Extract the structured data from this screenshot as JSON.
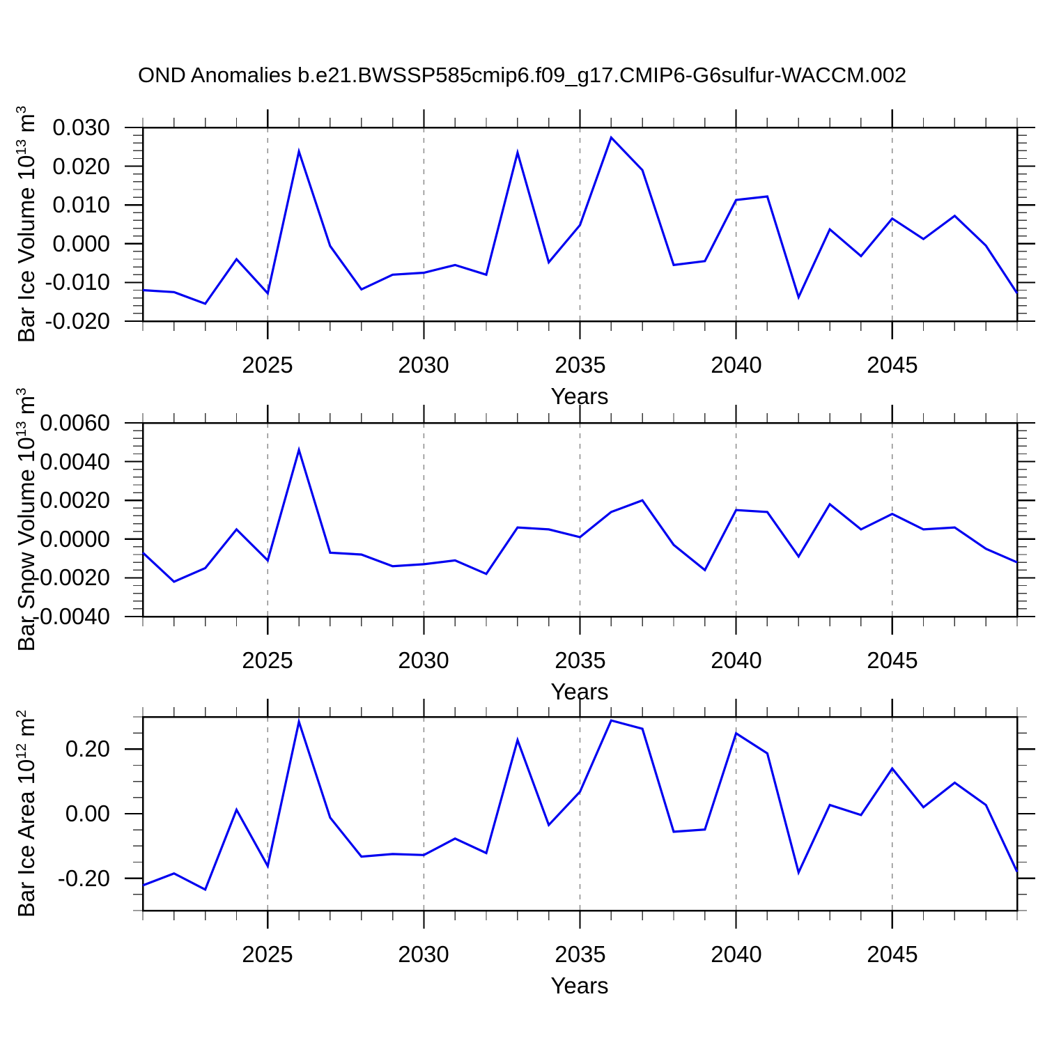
{
  "title": "OND Anomalies b.e21.BWSSP585cmip6.f09_g17.CMIP6-G6sulfur-WACCM.002",
  "style": {
    "line_color": "#0000f0",
    "axis_color": "#000000",
    "minor_tick_color": "#3a3a3a",
    "grid_color": "#8c8c8c",
    "background": "#ffffff"
  },
  "chart_data": [
    {
      "type": "line",
      "name": "ice-volume",
      "ylabel_main": "Bar Ice Volume 10",
      "ylabel_sup1": "13",
      "ylabel_mid": " m",
      "ylabel_sup2": "3",
      "xlabel": "Years",
      "xlim": [
        2021,
        2049
      ],
      "ylim": [
        -0.02,
        0.03
      ],
      "y_minor_step": 0.002,
      "y_tick_values": [
        0.03,
        0.02,
        0.01,
        0.0,
        -0.01,
        -0.02
      ],
      "y_tick_labels": [
        "0.030",
        "0.020",
        "0.010",
        "0.000",
        "-0.010",
        "-0.020"
      ],
      "x_tick_values": [
        2025,
        2030,
        2035,
        2040,
        2045
      ],
      "x_tick_labels": [
        "2025",
        "2030",
        "2035",
        "2040",
        "2045"
      ],
      "grid": "vertical-dashed-at-major",
      "years": [
        2021,
        2022,
        2023,
        2024,
        2025,
        2026,
        2027,
        2028,
        2029,
        2030,
        2031,
        2032,
        2033,
        2034,
        2035,
        2036,
        2037,
        2038,
        2039,
        2040,
        2041,
        2042,
        2043,
        2044,
        2045,
        2046,
        2047,
        2048,
        2049
      ],
      "values": [
        -0.012,
        -0.0125,
        -0.0155,
        -0.004,
        -0.0128,
        0.0238,
        -0.0006,
        -0.0118,
        -0.008,
        -0.0075,
        -0.0055,
        -0.008,
        0.0235,
        -0.0048,
        0.0048,
        0.0274,
        0.019,
        -0.0055,
        -0.0045,
        0.0113,
        0.0122,
        -0.0138,
        0.0037,
        -0.0032,
        0.0065,
        0.0012,
        0.0072,
        -0.0005,
        -0.0128
      ]
    },
    {
      "type": "line",
      "name": "snow-volume",
      "ylabel_main": "Bar Snow Volume 10",
      "ylabel_sup1": "13",
      "ylabel_mid": " m",
      "ylabel_sup2": "3",
      "xlabel": "Years",
      "xlim": [
        2021,
        2049
      ],
      "ylim": [
        -0.004,
        0.006
      ],
      "y_minor_step": 0.0004,
      "y_tick_values": [
        0.006,
        0.004,
        0.002,
        0.0,
        -0.002,
        -0.004
      ],
      "y_tick_labels": [
        "0.0060",
        "0.0040",
        "0.0020",
        "0.0000",
        "-0.0020",
        "-0.0040"
      ],
      "x_tick_values": [
        2025,
        2030,
        2035,
        2040,
        2045
      ],
      "x_tick_labels": [
        "2025",
        "2030",
        "2035",
        "2040",
        "2045"
      ],
      "grid": "vertical-dashed-at-major",
      "years": [
        2021,
        2022,
        2023,
        2024,
        2025,
        2026,
        2027,
        2028,
        2029,
        2030,
        2031,
        2032,
        2033,
        2034,
        2035,
        2036,
        2037,
        2038,
        2039,
        2040,
        2041,
        2042,
        2043,
        2044,
        2045,
        2046,
        2047,
        2048,
        2049
      ],
      "values": [
        -0.0007,
        -0.0022,
        -0.0015,
        0.0005,
        -0.0011,
        0.0046,
        -0.0007,
        -0.0008,
        -0.0014,
        -0.0013,
        -0.0011,
        -0.0018,
        0.0006,
        0.0005,
        0.0001,
        0.0014,
        0.002,
        -0.0003,
        -0.0016,
        0.0015,
        0.0014,
        -0.0009,
        0.0018,
        0.0005,
        0.0013,
        0.0005,
        0.0006,
        -0.0005,
        -0.0012
      ]
    },
    {
      "type": "line",
      "name": "ice-area",
      "ylabel_main": "Bar Ice Area 10",
      "ylabel_sup1": "12",
      "ylabel_mid": " m",
      "ylabel_sup2": "2",
      "xlabel": "Years",
      "xlim": [
        2021,
        2049
      ],
      "ylim": [
        -0.3,
        0.3
      ],
      "y_minor_step": 0.05,
      "y_tick_values": [
        0.2,
        0.0,
        -0.2
      ],
      "y_tick_labels": [
        "0.20",
        "0.00",
        "-0.20"
      ],
      "x_tick_values": [
        2025,
        2030,
        2035,
        2040,
        2045
      ],
      "x_tick_labels": [
        "2025",
        "2030",
        "2035",
        "2040",
        "2045"
      ],
      "grid": "vertical-dashed-at-major",
      "years": [
        2021,
        2022,
        2023,
        2024,
        2025,
        2026,
        2027,
        2028,
        2029,
        2030,
        2031,
        2032,
        2033,
        2034,
        2035,
        2036,
        2037,
        2038,
        2039,
        2040,
        2041,
        2042,
        2043,
        2044,
        2045,
        2046,
        2047,
        2048,
        2049
      ],
      "values": [
        -0.222,
        -0.185,
        -0.235,
        0.012,
        -0.162,
        0.285,
        -0.012,
        -0.133,
        -0.125,
        -0.128,
        -0.077,
        -0.122,
        0.228,
        -0.035,
        0.068,
        0.289,
        0.263,
        -0.056,
        -0.049,
        0.249,
        0.187,
        -0.182,
        0.027,
        -0.004,
        0.14,
        0.02,
        0.096,
        0.027,
        -0.18
      ]
    }
  ]
}
